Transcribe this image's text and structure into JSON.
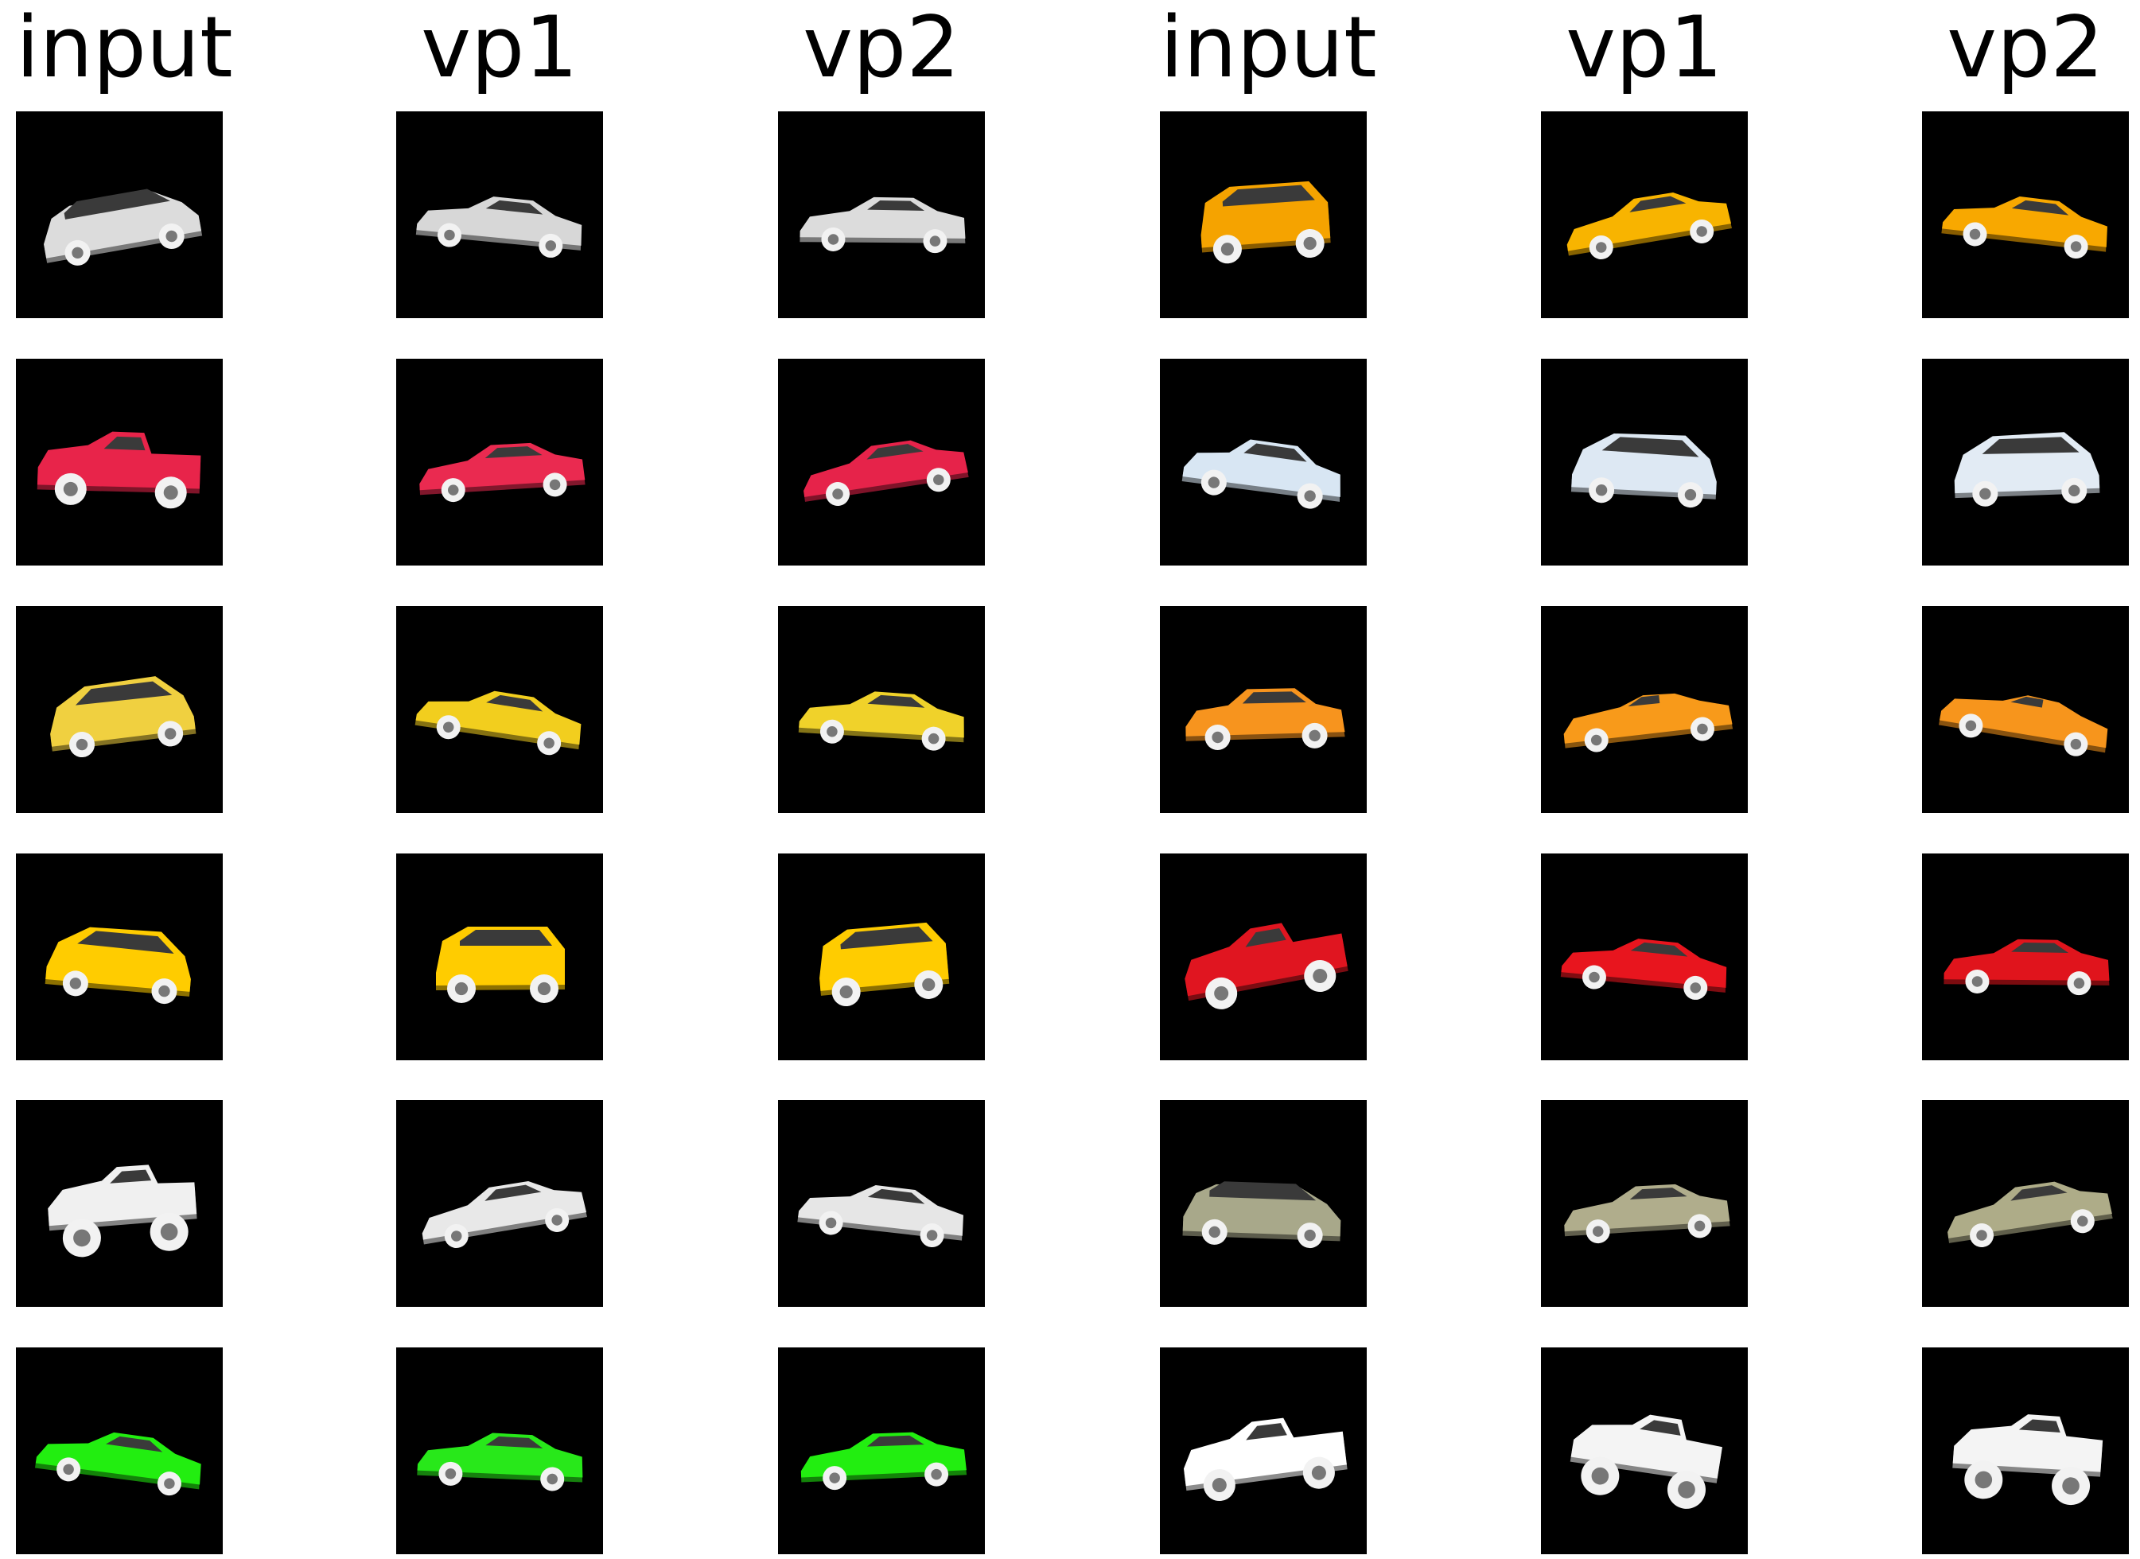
{
  "headers": [
    "input",
    "vp1",
    "vp2",
    "input",
    "vp1",
    "vp2"
  ],
  "grid": [
    [
      {
        "car": "station-wagon",
        "color": "#dcdcdc"
      },
      {
        "car": "sports-coupe",
        "color": "#d7d7d7"
      },
      {
        "car": "coupe",
        "color": "#dcdcdc"
      },
      {
        "car": "hatchback-suv",
        "color": "#f5a300"
      },
      {
        "car": "sports-car",
        "color": "#f8b400"
      },
      {
        "car": "sports-car",
        "color": "#f8a800"
      }
    ],
    [
      {
        "car": "pickup-truck",
        "color": "#e8244a"
      },
      {
        "car": "muscle-car",
        "color": "#ea2a50"
      },
      {
        "car": "muscle-car",
        "color": "#e6234a"
      },
      {
        "car": "sedan",
        "color": "#d8e6f3"
      },
      {
        "car": "minivan",
        "color": "#dde8f3"
      },
      {
        "car": "hatchback",
        "color": "#e2ebf4"
      }
    ],
    [
      {
        "car": "hatchback-rear",
        "color": "#f0d040"
      },
      {
        "car": "sports-car",
        "color": "#f2ce1e"
      },
      {
        "car": "sports-car",
        "color": "#f0d22a"
      },
      {
        "car": "sedan-front",
        "color": "#f7941e"
      },
      {
        "car": "convertible",
        "color": "#f89a1a"
      },
      {
        "car": "convertible",
        "color": "#f7951c"
      }
    ],
    [
      {
        "car": "hatchback",
        "color": "#ffcc00"
      },
      {
        "car": "suv-front",
        "color": "#ffcc00"
      },
      {
        "car": "suv",
        "color": "#ffcc00"
      },
      {
        "car": "pickup-truck",
        "color": "#e01520"
      },
      {
        "car": "sports-car-front",
        "color": "#e8151e"
      },
      {
        "car": "coupe",
        "color": "#e0141c"
      }
    ],
    [
      {
        "car": "monster-truck",
        "color": "#f0f0f0"
      },
      {
        "car": "sports-car",
        "color": "#e8e8e8"
      },
      {
        "car": "sports-car",
        "color": "#e6e6e6"
      },
      {
        "car": "station-wagon",
        "color": "#a8a88a"
      },
      {
        "car": "coupe",
        "color": "#b0ad8c"
      },
      {
        "car": "sports-car",
        "color": "#aeac88"
      }
    ],
    [
      {
        "car": "muscle-car",
        "color": "#22ee10"
      },
      {
        "car": "coupe",
        "color": "#28e81a"
      },
      {
        "car": "sports-car",
        "color": "#22ee10"
      },
      {
        "car": "pickup-truck",
        "color": "#ffffff"
      },
      {
        "car": "monster-truck",
        "color": "#f4f4f4"
      },
      {
        "car": "monster-truck-rear",
        "color": "#f4f4f4"
      }
    ]
  ],
  "colors": {
    "background": "#ffffff",
    "tile_background": "#000000",
    "text": "#000000"
  }
}
